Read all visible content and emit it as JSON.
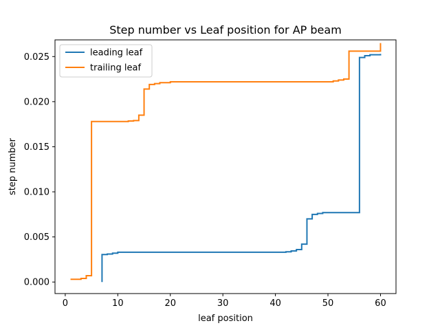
{
  "chart_data": {
    "type": "line",
    "title": "Step number vs Leaf position for AP beam",
    "xlabel": "leaf position",
    "ylabel": "step number",
    "xlim": [
      -1.95,
      62.95
    ],
    "ylim": [
      -0.00128,
      0.02685
    ],
    "xticks": [
      0,
      10,
      20,
      30,
      40,
      50,
      60
    ],
    "xtick_labels": [
      "0",
      "10",
      "20",
      "30",
      "40",
      "50",
      "60"
    ],
    "yticks": [
      0.0,
      0.005,
      0.01,
      0.015,
      0.02,
      0.025
    ],
    "ytick_labels": [
      "0.000",
      "0.005",
      "0.010",
      "0.015",
      "0.020",
      "0.025"
    ],
    "grid": false,
    "legend": {
      "position": "top-left"
    },
    "series": [
      {
        "name": "leading leaf",
        "color": "#1f77b4",
        "drawstyle": "steps",
        "x": [
          7,
          7,
          8,
          9,
          10,
          12,
          15,
          20,
          25,
          30,
          35,
          40,
          42,
          43,
          44,
          45,
          46,
          47,
          48,
          49,
          50,
          51,
          52,
          53,
          54,
          55,
          56,
          57,
          58,
          59,
          60
        ],
        "y": [
          0.0,
          0.00305,
          0.0031,
          0.0032,
          0.0033,
          0.0033,
          0.0033,
          0.0033,
          0.0033,
          0.0033,
          0.0033,
          0.0033,
          0.00335,
          0.00345,
          0.0036,
          0.0042,
          0.007,
          0.0075,
          0.0076,
          0.0077,
          0.0077,
          0.0077,
          0.0077,
          0.0077,
          0.0077,
          0.0077,
          0.0249,
          0.0251,
          0.0252,
          0.0252,
          0.0253
        ]
      },
      {
        "name": "trailing leaf",
        "color": "#ff7f0e",
        "drawstyle": "steps",
        "x": [
          1,
          2,
          3,
          4,
          5,
          6,
          7,
          8,
          9,
          10,
          11,
          12,
          13,
          14,
          15,
          16,
          17,
          18,
          19,
          20,
          25,
          30,
          35,
          40,
          45,
          50,
          51,
          52,
          53,
          54,
          55,
          56,
          57,
          58,
          59,
          60,
          60
        ],
        "y": [
          0.0003,
          0.0003,
          0.0004,
          0.0007,
          0.0178,
          0.0178,
          0.0178,
          0.0178,
          0.0178,
          0.0178,
          0.0178,
          0.01785,
          0.0179,
          0.0185,
          0.0214,
          0.0219,
          0.022,
          0.0221,
          0.0221,
          0.0222,
          0.0222,
          0.0222,
          0.0222,
          0.0222,
          0.0222,
          0.0222,
          0.0223,
          0.0224,
          0.0225,
          0.0256,
          0.0256,
          0.0256,
          0.0256,
          0.0256,
          0.0256,
          0.0257,
          0.0265
        ]
      }
    ]
  }
}
